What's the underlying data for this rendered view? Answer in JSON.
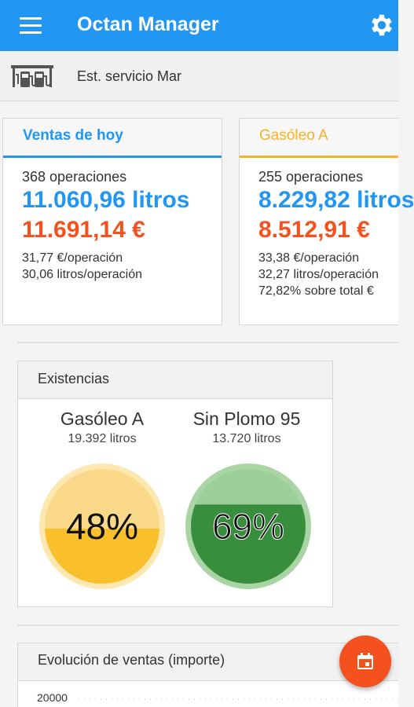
{
  "app": {
    "title": "Octan Manager"
  },
  "station": {
    "name": "Est. servicio Mar"
  },
  "cards": [
    {
      "title": "Ventas de hoy",
      "operaciones": "368 operaciones",
      "litros": "11.060,96 litros",
      "importe": "11.691,14 €",
      "stats": [
        "31,77 €/operación",
        "30,06 litros/operación"
      ]
    },
    {
      "title": "Gasóleo A",
      "operaciones": "255 operaciones",
      "litros": "8.229,82 litros",
      "importe": "8.512,91 €",
      "stats": [
        "33,38 €/operación",
        "32,27 litros/operación",
        "72,82% sobre total €"
      ]
    }
  ],
  "existencias": {
    "title": "Existencias",
    "tanks": [
      {
        "name": "Gasóleo A",
        "litros": "19.392 litros",
        "percent_label": "48%",
        "level": 0.48,
        "fill": "#f9c02c",
        "empty": "#fbd98a",
        "ring": "#fde8b2"
      },
      {
        "name": "Sin Plomo 95",
        "litros": "13.720 litros",
        "percent_label": "69%",
        "level": 0.69,
        "fill": "#388e3c",
        "empty": "#9ccf9a",
        "ring": "#a9d4a4"
      }
    ]
  },
  "evolucion": {
    "title": "Evolución de ventas (importe)",
    "y_tick_top": "20000"
  },
  "colors": {
    "primary": "#2196f3",
    "accent": "#f4511e",
    "amber": "#f5b325"
  },
  "icons": {
    "menu": "menu-icon",
    "settings": "gear-icon",
    "station": "fuel-station-icon",
    "calendar": "calendar-icon"
  }
}
